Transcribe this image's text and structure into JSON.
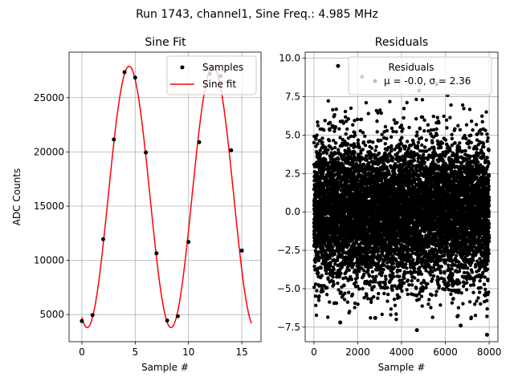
{
  "figure": {
    "suptitle": "Run 1743, channel1, Sine Freq.: 4.985 MHz"
  },
  "chart_data": [
    {
      "type": "line",
      "title": "Sine Fit",
      "xlabel": "Sample #",
      "ylabel": "ADC Counts",
      "xlim": [
        -1.2,
        16.8
      ],
      "ylim": [
        2500,
        29200
      ],
      "xticks": [
        0,
        5,
        10,
        15
      ],
      "yticks": [
        5000,
        10000,
        15000,
        20000,
        25000
      ],
      "grid": true,
      "legend": {
        "position": "top-right",
        "entries": [
          "Samples",
          "Sine fit"
        ]
      },
      "series": [
        {
          "name": "Samples",
          "kind": "scatter",
          "color": "#000000",
          "x": [
            0,
            1,
            2,
            3,
            4,
            5,
            6,
            7,
            8,
            9,
            10,
            11,
            12,
            13,
            14,
            15
          ],
          "y": [
            4400,
            4950,
            11950,
            21150,
            27350,
            26850,
            19950,
            10650,
            4450,
            4850,
            11700,
            20900,
            27200,
            27000,
            20150,
            10900
          ]
        },
        {
          "name": "Sine fit",
          "kind": "line",
          "color": "#ff0000",
          "function": {
            "offset": 15850,
            "amplitude": 12050,
            "period": 7.86,
            "phase_sample": 0.5,
            "x_range": [
              0,
              15.9
            ],
            "samples": 320
          }
        }
      ]
    },
    {
      "type": "scatter",
      "title": "Residuals",
      "xlabel": "Sample #",
      "ylabel": "",
      "xlim": [
        -400,
        8400
      ],
      "ylim": [
        -8.45,
        10.4
      ],
      "xticks": [
        0,
        2000,
        4000,
        6000,
        8000
      ],
      "yticks": [
        -7.5,
        -5.0,
        -2.5,
        0.0,
        2.5,
        5.0,
        7.5,
        10.0
      ],
      "ytick_labels": [
        "−7.5",
        "−5.0",
        "−2.5",
        "0.0",
        "2.5",
        "5.0",
        "7.5",
        "10.0"
      ],
      "grid": true,
      "legend": {
        "position": "top-right",
        "title": "Residuals",
        "entries": [
          "μ = -0.0, σ = 2.36"
        ]
      },
      "series": [
        {
          "name": "Residuals",
          "color": "#000000",
          "count": 8000,
          "x_range": [
            0,
            7999
          ],
          "mean": 0.0,
          "std": 2.36,
          "highlights": [
            {
              "x": 1100,
              "y": 9.5
            },
            {
              "x": 2200,
              "y": 8.8
            },
            {
              "x": 4800,
              "y": 7.9
            },
            {
              "x": 5600,
              "y": 8.3
            },
            {
              "x": 6100,
              "y": 7.6
            },
            {
              "x": 7900,
              "y": -8.0
            },
            {
              "x": 4700,
              "y": -7.7
            },
            {
              "x": 1200,
              "y": -7.2
            },
            {
              "x": 2800,
              "y": -6.9
            },
            {
              "x": 6700,
              "y": -7.4
            }
          ]
        }
      ]
    }
  ]
}
